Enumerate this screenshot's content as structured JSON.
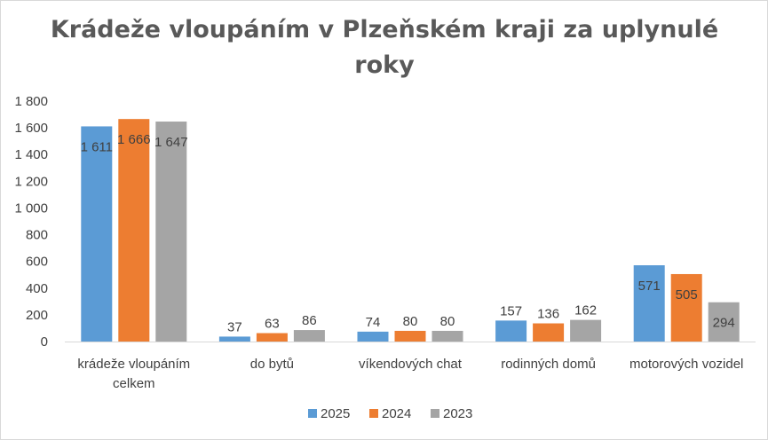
{
  "chart_data": {
    "type": "bar",
    "title": "Krádeže vloupáním v Plzeňském kraji za uplynulé roky",
    "title_lines": [
      "Krádeže vloupáním v Plzeňském kraji za uplynulé",
      "roky"
    ],
    "categories": [
      "krádeže vloupáním celkem",
      "do bytů",
      "víkendových chat",
      "rodinných domů",
      "motorových vozidel"
    ],
    "category_lines": [
      [
        "krádeže vloupáním",
        "celkem"
      ],
      [
        "do bytů"
      ],
      [
        "víkendových chat"
      ],
      [
        "rodinných domů"
      ],
      [
        "motorových vozidel"
      ]
    ],
    "series": [
      {
        "name": "2025",
        "color": "#5b9bd5",
        "values": [
          1611,
          37,
          74,
          157,
          571
        ],
        "labels": [
          "1 611",
          "37",
          "74",
          "157",
          "571"
        ]
      },
      {
        "name": "2024",
        "color": "#ed7d31",
        "values": [
          1666,
          63,
          80,
          136,
          505
        ],
        "labels": [
          "1 666",
          "63",
          "80",
          "136",
          "505"
        ]
      },
      {
        "name": "2023",
        "color": "#a5a5a5",
        "values": [
          1647,
          86,
          80,
          162,
          294
        ],
        "labels": [
          "1 647",
          "86",
          "80",
          "162",
          "294"
        ]
      }
    ],
    "ylim": [
      0,
      1800
    ],
    "yticks": [
      0,
      200,
      400,
      600,
      800,
      1000,
      1200,
      1400,
      1600,
      1800
    ],
    "ytick_labels": [
      "0",
      "200",
      "400",
      "600",
      "800",
      "1 000",
      "1 200",
      "1 400",
      "1 600",
      "1 800"
    ],
    "xlabel": "",
    "ylabel": "",
    "grid": false,
    "legend_position": "bottom"
  }
}
